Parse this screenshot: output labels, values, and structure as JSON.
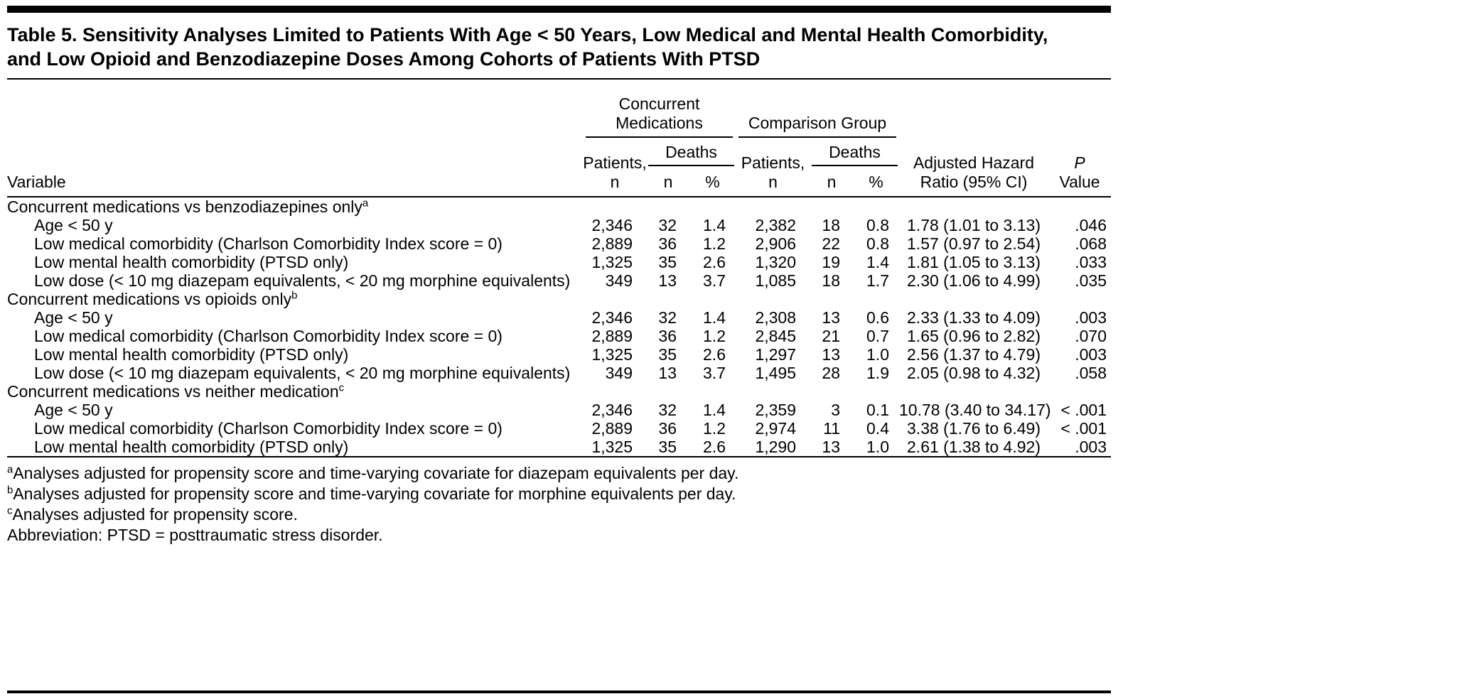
{
  "colors": {
    "text": "#000000",
    "background": "#ffffff",
    "rule": "#000000"
  },
  "title": {
    "line1": "Table 5. Sensitivity Analyses Limited to Patients With Age < 50 Years, Low Medical and Mental Health Comorbidity,",
    "line2": "and Low Opioid and Benzodiazepine Doses Among Cohorts of Patients With PTSD"
  },
  "header": {
    "variable": "Variable",
    "group1": "Concurrent\nMedications",
    "group2": "Comparison Group",
    "patients": "Patients,\nn",
    "deaths": "Deaths",
    "n": "n",
    "pct": "%",
    "ahr": "Adjusted Hazard\nRatio (95% CI)",
    "p_italic": "P",
    "p_rest": "Value"
  },
  "sections": [
    {
      "label": "Concurrent medications vs benzodiazepines only",
      "sup": "a",
      "rows": [
        {
          "variable": "Age < 50 y",
          "cm_patients": "2,346",
          "cm_deaths_n": "32",
          "cm_deaths_pct": "1.4",
          "cg_patients": "2,382",
          "cg_deaths_n": "18",
          "cg_deaths_pct": "0.8",
          "ahr": "1.78 (1.01 to 3.13)",
          "p": ".046"
        },
        {
          "variable": "Low medical comorbidity (Charlson Comorbidity Index score = 0)",
          "cm_patients": "2,889",
          "cm_deaths_n": "36",
          "cm_deaths_pct": "1.2",
          "cg_patients": "2,906",
          "cg_deaths_n": "22",
          "cg_deaths_pct": "0.8",
          "ahr": "1.57 (0.97 to 2.54)",
          "p": ".068"
        },
        {
          "variable": "Low mental health comorbidity (PTSD only)",
          "cm_patients": "1,325",
          "cm_deaths_n": "35",
          "cm_deaths_pct": "2.6",
          "cg_patients": "1,320",
          "cg_deaths_n": "19",
          "cg_deaths_pct": "1.4",
          "ahr": "1.81 (1.05 to 3.13)",
          "p": ".033"
        },
        {
          "variable": "Low dose (< 10 mg diazepam equivalents, < 20 mg morphine equivalents)",
          "cm_patients": "349",
          "cm_deaths_n": "13",
          "cm_deaths_pct": "3.7",
          "cg_patients": "1,085",
          "cg_deaths_n": "18",
          "cg_deaths_pct": "1.7",
          "ahr": "2.30 (1.06 to 4.99)",
          "p": ".035"
        }
      ]
    },
    {
      "label": "Concurrent medications vs opioids only",
      "sup": "b",
      "rows": [
        {
          "variable": "Age < 50 y",
          "cm_patients": "2,346",
          "cm_deaths_n": "32",
          "cm_deaths_pct": "1.4",
          "cg_patients": "2,308",
          "cg_deaths_n": "13",
          "cg_deaths_pct": "0.6",
          "ahr": "2.33 (1.33 to 4.09)",
          "p": ".003"
        },
        {
          "variable": "Low medical comorbidity (Charlson Comorbidity Index score = 0)",
          "cm_patients": "2,889",
          "cm_deaths_n": "36",
          "cm_deaths_pct": "1.2",
          "cg_patients": "2,845",
          "cg_deaths_n": "21",
          "cg_deaths_pct": "0.7",
          "ahr": "1.65 (0.96 to 2.82)",
          "p": ".070"
        },
        {
          "variable": "Low mental health comorbidity (PTSD only)",
          "cm_patients": "1,325",
          "cm_deaths_n": "35",
          "cm_deaths_pct": "2.6",
          "cg_patients": "1,297",
          "cg_deaths_n": "13",
          "cg_deaths_pct": "1.0",
          "ahr": "2.56 (1.37 to 4.79)",
          "p": ".003"
        },
        {
          "variable": "Low dose (< 10 mg diazepam equivalents, < 20 mg morphine equivalents)",
          "cm_patients": "349",
          "cm_deaths_n": "13",
          "cm_deaths_pct": "3.7",
          "cg_patients": "1,495",
          "cg_deaths_n": "28",
          "cg_deaths_pct": "1.9",
          "ahr": "2.05 (0.98 to 4.32)",
          "p": ".058"
        }
      ]
    },
    {
      "label": "Concurrent medications vs neither medication",
      "sup": "c",
      "rows": [
        {
          "variable": "Age < 50 y",
          "cm_patients": "2,346",
          "cm_deaths_n": "32",
          "cm_deaths_pct": "1.4",
          "cg_patients": "2,359",
          "cg_deaths_n": "3",
          "cg_deaths_pct": "0.1",
          "ahr": "10.78 (3.40 to 34.17)",
          "p": "< .001"
        },
        {
          "variable": "Low medical comorbidity (Charlson Comorbidity Index score = 0)",
          "cm_patients": "2,889",
          "cm_deaths_n": "36",
          "cm_deaths_pct": "1.2",
          "cg_patients": "2,974",
          "cg_deaths_n": "11",
          "cg_deaths_pct": "0.4",
          "ahr": "3.38 (1.76 to 6.49)",
          "p": "< .001"
        },
        {
          "variable": "Low mental health comorbidity (PTSD only)",
          "cm_patients": "1,325",
          "cm_deaths_n": "35",
          "cm_deaths_pct": "2.6",
          "cg_patients": "1,290",
          "cg_deaths_n": "13",
          "cg_deaths_pct": "1.0",
          "ahr": "2.61 (1.38 to 4.92)",
          "p": ".003"
        }
      ]
    }
  ],
  "footnotes": [
    {
      "sup": "a",
      "text": "Analyses adjusted for propensity score and time-varying covariate for diazepam equivalents per day."
    },
    {
      "sup": "b",
      "text": "Analyses adjusted for propensity score and time-varying covariate for morphine equivalents per day."
    },
    {
      "sup": "c",
      "text": "Analyses adjusted for propensity score."
    },
    {
      "sup": "",
      "text": "Abbreviation: PTSD = posttraumatic stress disorder."
    }
  ]
}
